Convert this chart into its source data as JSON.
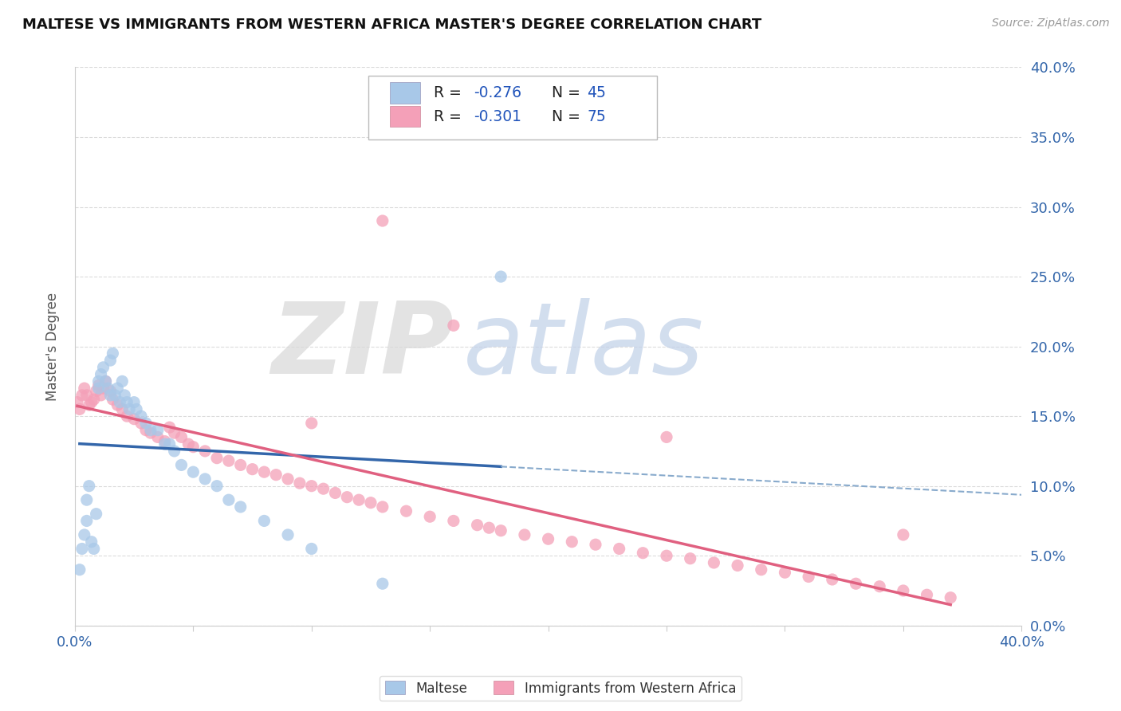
{
  "title": "MALTESE VS IMMIGRANTS FROM WESTERN AFRICA MASTER'S DEGREE CORRELATION CHART",
  "source": "Source: ZipAtlas.com",
  "ylabel": "Master's Degree",
  "xlim": [
    0.0,
    0.4
  ],
  "ylim": [
    0.0,
    0.4
  ],
  "blue_R": -0.276,
  "blue_N": 45,
  "pink_R": -0.301,
  "pink_N": 75,
  "blue_color": "#a8c8e8",
  "pink_color": "#f4a0b8",
  "blue_line_color": "#3366aa",
  "pink_line_color": "#e06080",
  "dashed_line_color": "#88aacc",
  "grid_color": "#cccccc",
  "title_color": "#111111",
  "source_color": "#999999",
  "axis_label_color": "#3366aa",
  "blue_scatter_x": [
    0.002,
    0.003,
    0.004,
    0.005,
    0.005,
    0.006,
    0.007,
    0.008,
    0.009,
    0.01,
    0.01,
    0.011,
    0.012,
    0.013,
    0.014,
    0.015,
    0.015,
    0.016,
    0.017,
    0.018,
    0.019,
    0.02,
    0.021,
    0.022,
    0.023,
    0.025,
    0.026,
    0.028,
    0.03,
    0.032,
    0.035,
    0.038,
    0.04,
    0.042,
    0.045,
    0.05,
    0.055,
    0.06,
    0.065,
    0.07,
    0.08,
    0.09,
    0.1,
    0.13,
    0.18
  ],
  "blue_scatter_y": [
    0.04,
    0.055,
    0.065,
    0.075,
    0.09,
    0.1,
    0.06,
    0.055,
    0.08,
    0.17,
    0.175,
    0.18,
    0.185,
    0.175,
    0.17,
    0.165,
    0.19,
    0.195,
    0.165,
    0.17,
    0.16,
    0.175,
    0.165,
    0.16,
    0.155,
    0.16,
    0.155,
    0.15,
    0.145,
    0.14,
    0.14,
    0.13,
    0.13,
    0.125,
    0.115,
    0.11,
    0.105,
    0.1,
    0.09,
    0.085,
    0.075,
    0.065,
    0.055,
    0.03,
    0.25
  ],
  "pink_scatter_x": [
    0.001,
    0.002,
    0.003,
    0.004,
    0.005,
    0.006,
    0.007,
    0.008,
    0.009,
    0.01,
    0.011,
    0.012,
    0.013,
    0.015,
    0.016,
    0.018,
    0.02,
    0.022,
    0.025,
    0.028,
    0.03,
    0.032,
    0.035,
    0.038,
    0.04,
    0.042,
    0.045,
    0.048,
    0.05,
    0.055,
    0.06,
    0.065,
    0.07,
    0.075,
    0.08,
    0.085,
    0.09,
    0.095,
    0.1,
    0.105,
    0.11,
    0.115,
    0.12,
    0.125,
    0.13,
    0.14,
    0.15,
    0.16,
    0.17,
    0.175,
    0.18,
    0.19,
    0.2,
    0.21,
    0.22,
    0.23,
    0.24,
    0.25,
    0.26,
    0.27,
    0.28,
    0.29,
    0.3,
    0.31,
    0.32,
    0.33,
    0.34,
    0.35,
    0.36,
    0.37,
    0.1,
    0.13,
    0.16,
    0.25,
    0.35
  ],
  "pink_scatter_y": [
    0.16,
    0.155,
    0.165,
    0.17,
    0.165,
    0.158,
    0.16,
    0.162,
    0.168,
    0.172,
    0.165,
    0.17,
    0.175,
    0.168,
    0.162,
    0.158,
    0.155,
    0.15,
    0.148,
    0.145,
    0.14,
    0.138,
    0.135,
    0.132,
    0.142,
    0.138,
    0.135,
    0.13,
    0.128,
    0.125,
    0.12,
    0.118,
    0.115,
    0.112,
    0.11,
    0.108,
    0.105,
    0.102,
    0.1,
    0.098,
    0.095,
    0.092,
    0.09,
    0.088,
    0.085,
    0.082,
    0.078,
    0.075,
    0.072,
    0.07,
    0.068,
    0.065,
    0.062,
    0.06,
    0.058,
    0.055,
    0.052,
    0.05,
    0.048,
    0.045,
    0.043,
    0.04,
    0.038,
    0.035,
    0.033,
    0.03,
    0.028,
    0.025,
    0.022,
    0.02,
    0.145,
    0.29,
    0.215,
    0.135,
    0.065
  ]
}
